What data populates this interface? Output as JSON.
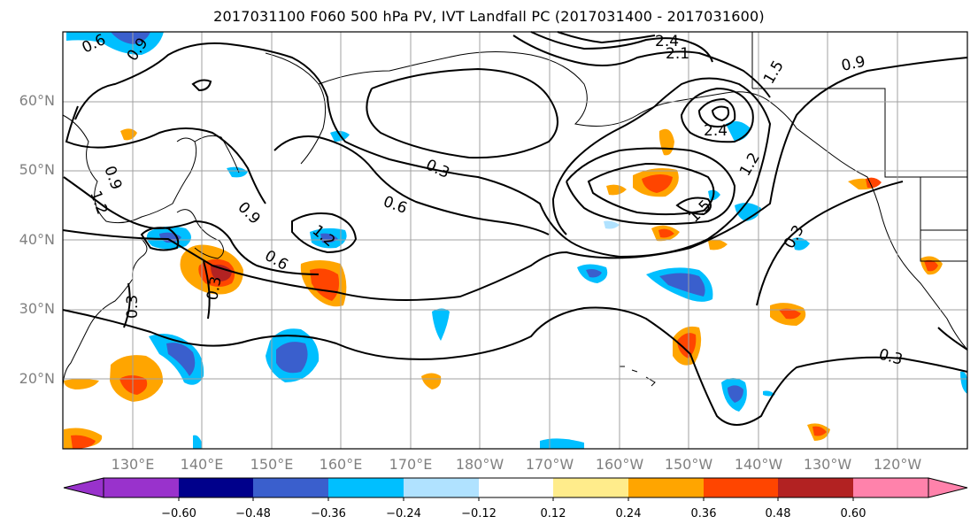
{
  "title": "2017031100 F060 500 hPa PV, IVT Landfall PC (2017031400 - 2017031600)",
  "lat_labels": [
    "60°N",
    "50°N",
    "40°N",
    "30°N",
    "20°N"
  ],
  "lon_labels": [
    "130°E",
    "140°E",
    "150°E",
    "160°E",
    "170°E",
    "180°W",
    "170°W",
    "160°W",
    "150°W",
    "140°W",
    "130°W",
    "120°W"
  ],
  "contour_labels": [
    "0.6",
    "0.9",
    "2.4",
    "2.1",
    "1.5",
    "0.9",
    "2.4",
    "1.2",
    "1.5",
    "0.9",
    "1.2",
    "0.3",
    "0.6",
    "0.9",
    "1.2",
    "0.6",
    "0.3",
    "0.3",
    "0.3",
    "0.3"
  ],
  "colorbar": {
    "ticks": [
      "−0.60",
      "−0.48",
      "−0.36",
      "−0.24",
      "−0.12",
      "0.12",
      "0.24",
      "0.36",
      "0.48",
      "0.60"
    ],
    "colors": [
      "#9932CC",
      "#00008B",
      "#3A5FCD",
      "#00BFFF",
      "#B0E2FF",
      "#FFFFFF",
      "#FFEC8B",
      "#FFA500",
      "#FF4500",
      "#B22222",
      "#FF82AB"
    ]
  },
  "colors": {
    "axis_label": "#808080",
    "contour": "#000000",
    "grid": "#a0a0a0"
  }
}
